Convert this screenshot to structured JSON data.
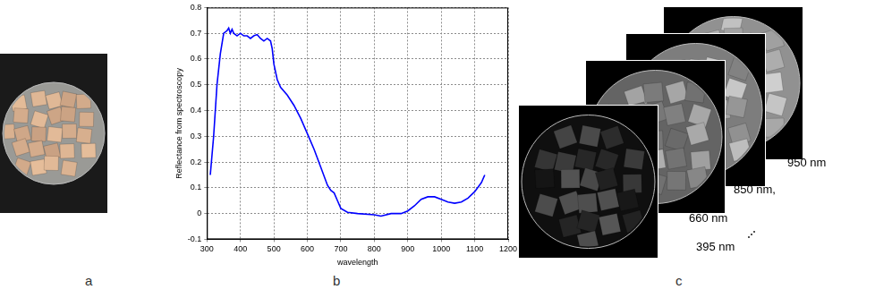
{
  "chart_data": {
    "type": "line",
    "x_label": "wavelength",
    "y_label": "Reflectance from spectroscopy",
    "x": [
      310,
      320,
      330,
      340,
      350,
      360,
      365,
      370,
      375,
      380,
      390,
      400,
      410,
      420,
      430,
      440,
      450,
      460,
      470,
      480,
      490,
      495,
      500,
      510,
      520,
      540,
      560,
      580,
      600,
      620,
      640,
      660,
      670,
      680,
      690,
      700,
      720,
      750,
      800,
      820,
      850,
      880,
      900,
      920,
      940,
      960,
      980,
      1000,
      1020,
      1040,
      1060,
      1080,
      1100,
      1120,
      1130
    ],
    "values": [
      0.15,
      0.3,
      0.5,
      0.62,
      0.7,
      0.71,
      0.72,
      0.7,
      0.715,
      0.7,
      0.69,
      0.7,
      0.69,
      0.69,
      0.68,
      0.69,
      0.695,
      0.68,
      0.67,
      0.68,
      0.67,
      0.64,
      0.58,
      0.52,
      0.49,
      0.46,
      0.42,
      0.37,
      0.31,
      0.25,
      0.18,
      0.11,
      0.09,
      0.08,
      0.05,
      0.02,
      0.005,
      0.0,
      -0.005,
      -0.01,
      0.0,
      0.0,
      0.01,
      0.03,
      0.055,
      0.065,
      0.065,
      0.055,
      0.045,
      0.04,
      0.045,
      0.06,
      0.085,
      0.12,
      0.15
    ],
    "color": "#0000ff",
    "xlim": [
      300,
      1200
    ],
    "xticks": [
      300,
      400,
      500,
      600,
      700,
      800,
      900,
      1000,
      1100,
      1200
    ],
    "ylim": [
      -0.1,
      0.8
    ],
    "yticks": [
      -0.1,
      0,
      0.1,
      0.2,
      0.3,
      0.4,
      0.5,
      0.6,
      0.7,
      0.8
    ],
    "grid": true
  },
  "panel_labels": [
    "a",
    "b",
    "c"
  ],
  "image_stack_labels": [
    "950 nm",
    "850 nm,",
    "660 nm",
    "395 nm"
  ]
}
